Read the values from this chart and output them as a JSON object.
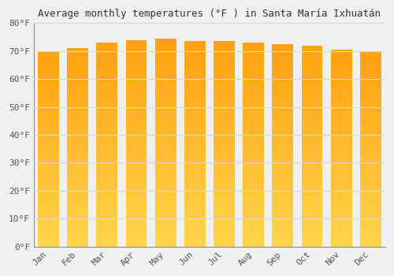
{
  "title": "Average monthly temperatures (°F ) in Santa María Ixhuatán",
  "months": [
    "Jan",
    "Feb",
    "Mar",
    "Apr",
    "May",
    "Jun",
    "Jul",
    "Aug",
    "Sep",
    "Oct",
    "Nov",
    "Dec"
  ],
  "values": [
    70.0,
    71.0,
    73.0,
    74.0,
    74.5,
    73.5,
    73.5,
    73.0,
    72.5,
    72.0,
    70.5,
    70.0
  ],
  "ylim": [
    0,
    80
  ],
  "yticks": [
    0,
    10,
    20,
    30,
    40,
    50,
    60,
    70,
    80
  ],
  "ytick_labels": [
    "0°F",
    "10°F",
    "20°F",
    "30°F",
    "40°F",
    "50°F",
    "60°F",
    "70°F",
    "80°F"
  ],
  "background_color": "#f0f0f0",
  "grid_color": "#d8d8d8",
  "title_fontsize": 9,
  "tick_fontsize": 8,
  "bar_color_bottom": "#FFD44A",
  "bar_color_top": "#FFA010",
  "bar_width": 0.72
}
